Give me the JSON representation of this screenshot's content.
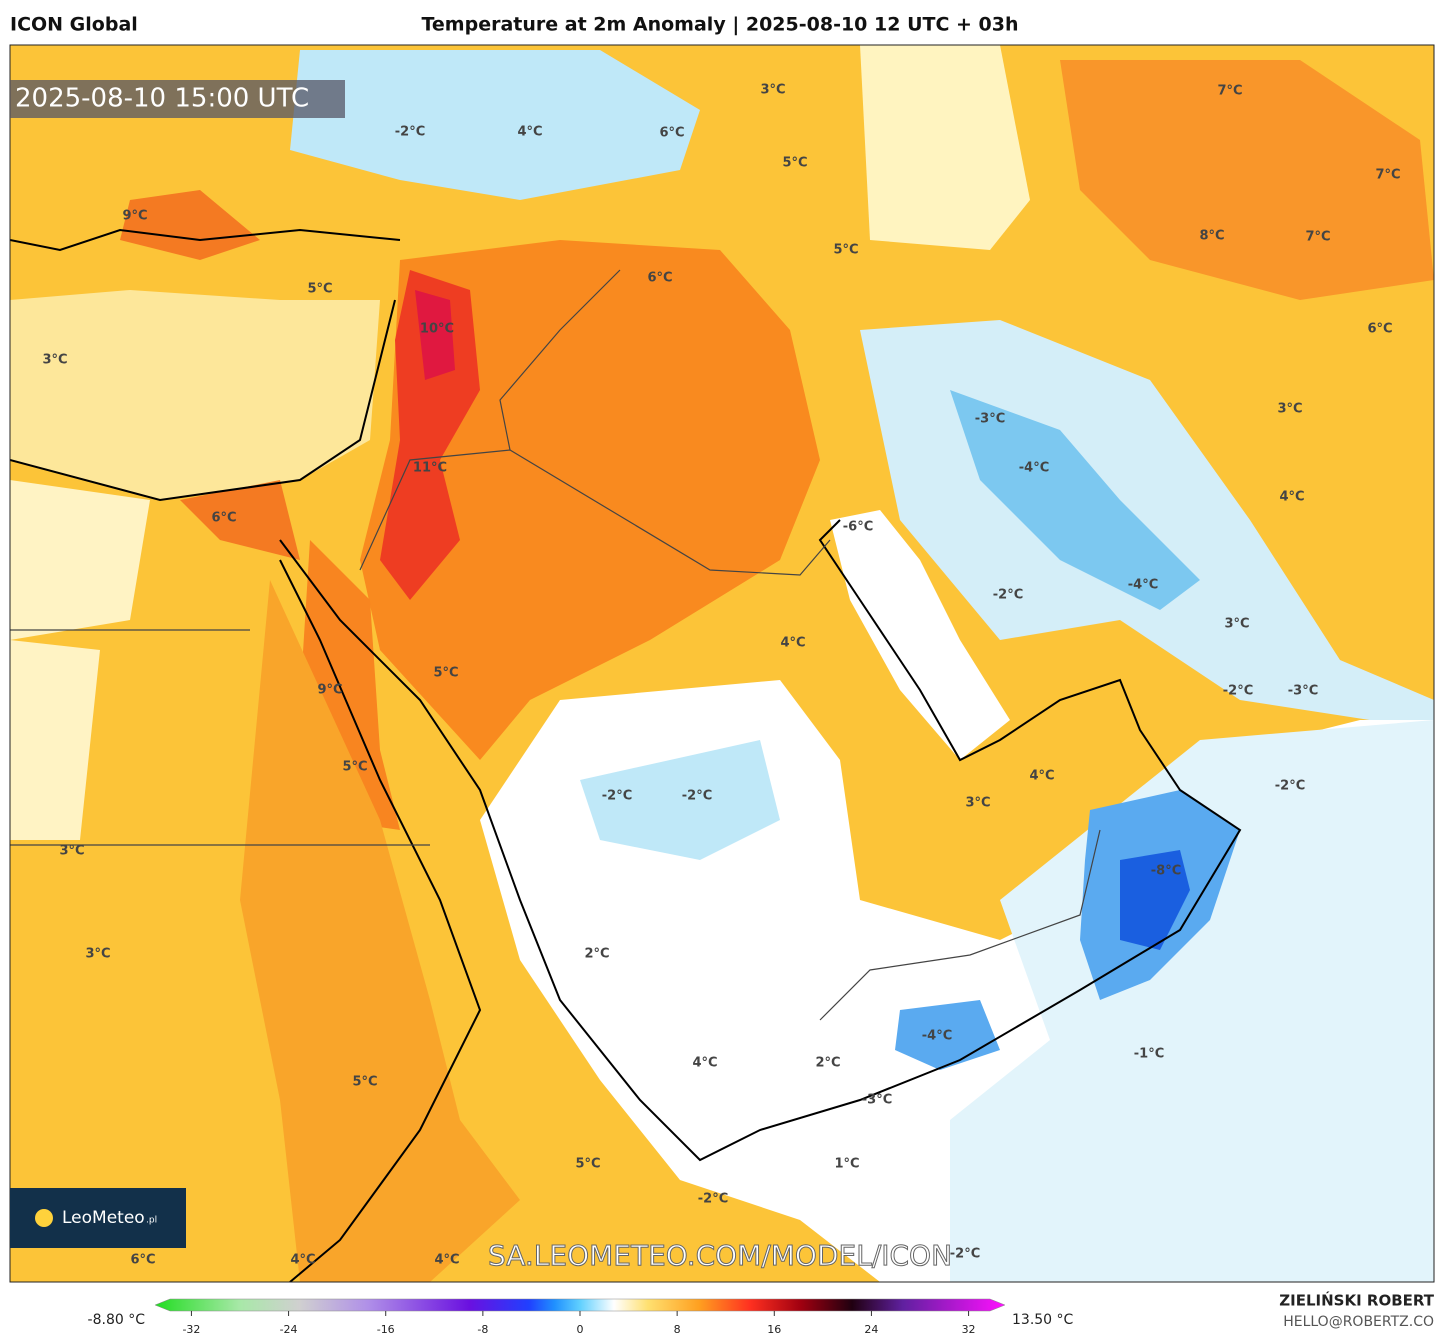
{
  "header": {
    "model": "ICON Global",
    "title": "Temperature at 2m Anomaly | 2025-08-10 12 UTC + 03h"
  },
  "timestamp": "2025-08-10 15:00 UTC",
  "map_labels": [
    "3°C",
    "-2°C",
    "4°C",
    "6°C",
    "5°C",
    "7°C",
    "7°C",
    "9°C",
    "8°C",
    "7°C",
    "6°C",
    "5°C",
    "5°C",
    "10°C",
    "6°C",
    "3°C",
    "-3°C",
    "3°C",
    "-4°C",
    "11°C",
    "4°C",
    "6°C",
    "-6°C",
    "-4°C",
    "-2°C",
    "3°C",
    "4°C",
    "5°C",
    "-2°C",
    "-3°C",
    "9°C",
    "5°C",
    "4°C",
    "3°C",
    "-2°C",
    "-2°C",
    "-2°C",
    "3°C",
    "-8°C",
    "3°C",
    "2°C",
    "-4°C",
    "-1°C",
    "2°C",
    "4°C",
    "5°C",
    "-3°C",
    "1°C",
    "5°C",
    "-2°C",
    "6°C",
    "4°C",
    "4°C",
    "-2°C"
  ],
  "watermark": "SA.LEOMETEO.COM/MODEL/ICON",
  "logo": {
    "name": "LeoMeteo",
    "suffix": ".pl"
  },
  "colorbar": {
    "min_label": "-8.80 °C",
    "max_label": "13.50 °C",
    "range": [
      -35,
      35
    ],
    "ticks": [
      -32,
      -24,
      -16,
      -8,
      0,
      8,
      16,
      24,
      32
    ]
  },
  "footer": {
    "author": "ZIELIŃSKI ROBERT",
    "contact": "HELLO@ROBERTZ.CO"
  }
}
